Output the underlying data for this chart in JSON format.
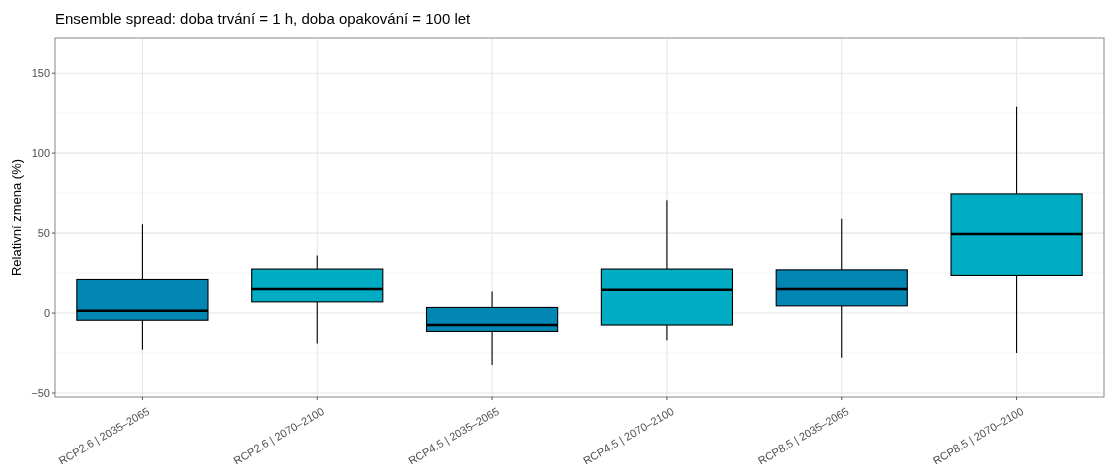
{
  "chart_data": {
    "type": "box",
    "title": "Ensemble spread: doba trvání = 1 h, doba opakování = 100 let",
    "ylabel": "Relativní zmena (%)",
    "categories": [
      "RCP2.6 | 2035–2065",
      "RCP2.6 | 2070–2100",
      "RCP4.5 | 2035–2065",
      "RCP4.5 | 2070–2100",
      "RCP8.5 | 2035–2065",
      "RCP8.5 | 2070–2100"
    ],
    "colors": [
      "#0286b4",
      "#00acc3",
      "#0286b4",
      "#00acc3",
      "#0286b4",
      "#00acc3"
    ],
    "boxes": [
      {
        "low": -23,
        "q1": -4.5,
        "median": 1.5,
        "q3": 21,
        "high": 55.5
      },
      {
        "low": -19,
        "q1": 7,
        "median": 15,
        "q3": 27.5,
        "high": 36
      },
      {
        "low": -32.5,
        "q1": -11.5,
        "median": -7.5,
        "q3": 3.5,
        "high": 13.5
      },
      {
        "low": -17,
        "q1": -7.5,
        "median": 14.5,
        "q3": 27.5,
        "high": 70.5
      },
      {
        "low": -28,
        "q1": 4.5,
        "median": 15,
        "q3": 27,
        "high": 59
      },
      {
        "low": -25,
        "q1": 23.5,
        "median": 49.5,
        "q3": 74.5,
        "high": 129
      }
    ],
    "ylim": [
      -52.5,
      172
    ],
    "yticks": [
      -50,
      0,
      50,
      100,
      150
    ],
    "grid": true
  }
}
